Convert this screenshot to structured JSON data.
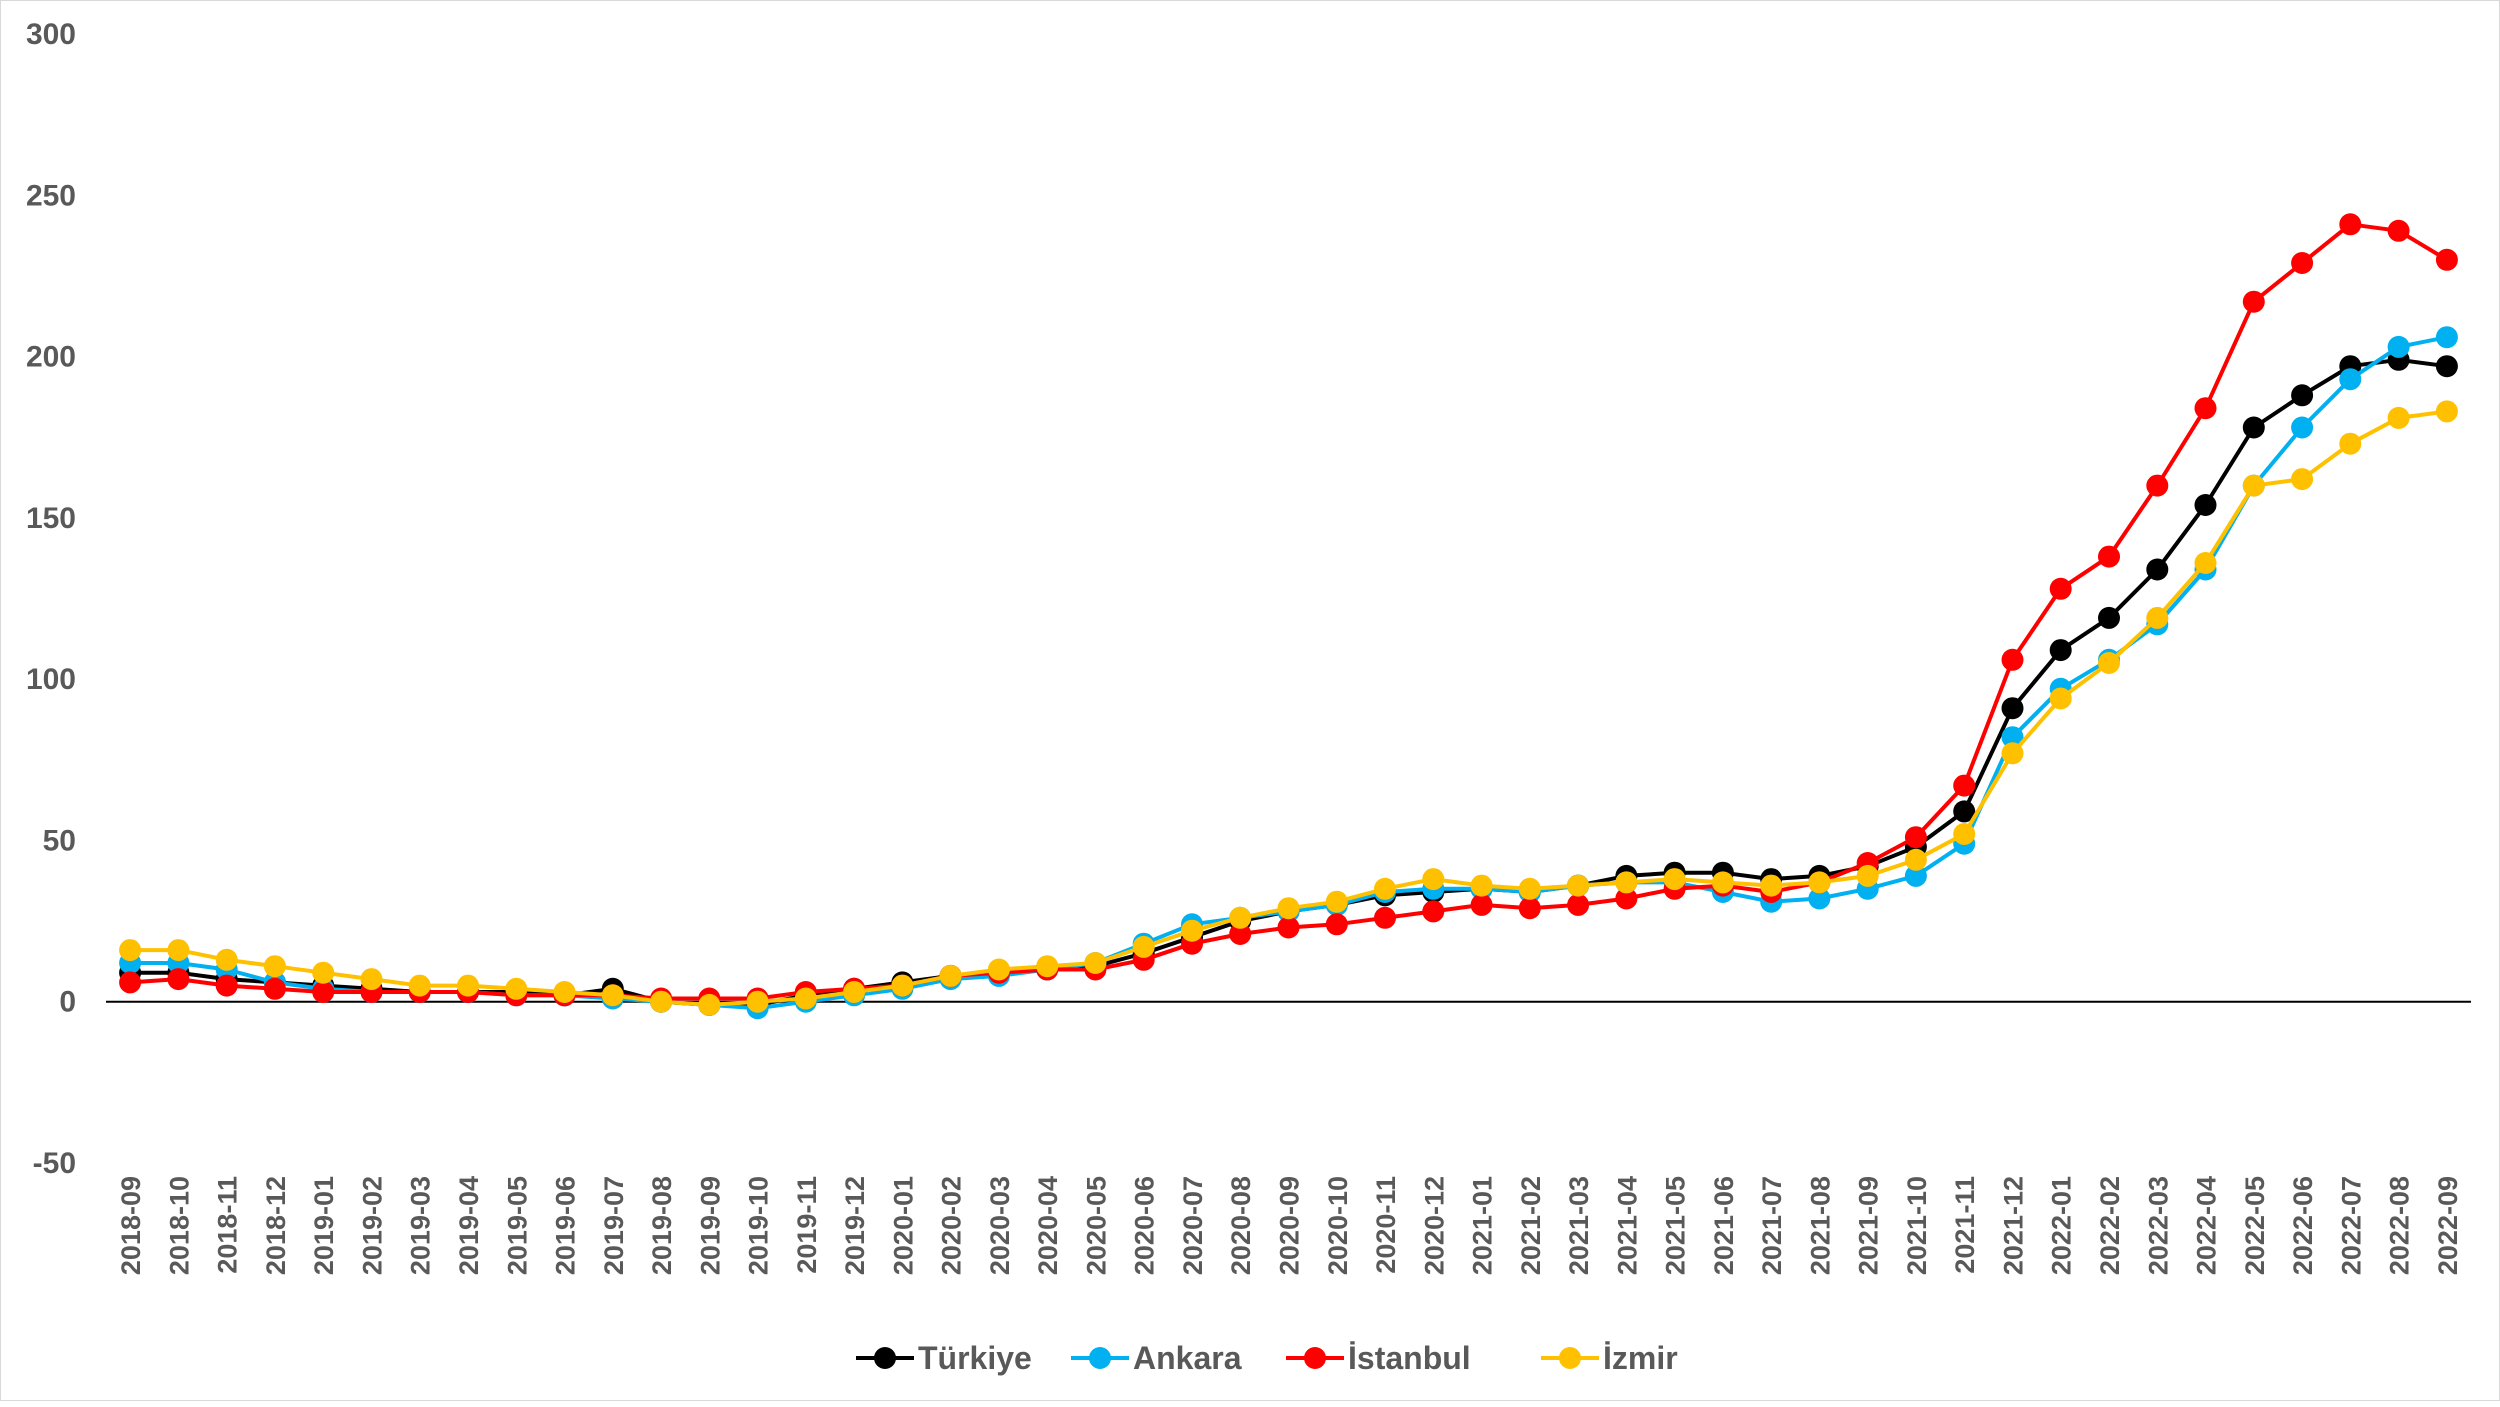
{
  "chart_data": {
    "type": "line",
    "title": "",
    "xlabel": "",
    "ylabel": "",
    "ylim": [
      -50,
      300
    ],
    "yticks": [
      -50,
      0,
      50,
      100,
      150,
      200,
      250,
      300
    ],
    "grid": false,
    "legend_position": "bottom",
    "categories": [
      "2018-09",
      "2018-10",
      "2018-11",
      "2018-12",
      "2019-01",
      "2019-02",
      "2019-03",
      "2019-04",
      "2019-05",
      "2019-06",
      "2019-07",
      "2019-08",
      "2019-09",
      "2019-10",
      "2019-11",
      "2019-12",
      "2020-01",
      "2020-02",
      "2020-03",
      "2020-04",
      "2020-05",
      "2020-06",
      "2020-07",
      "2020-08",
      "2020-09",
      "2020-10",
      "2020-11",
      "2020-12",
      "2021-01",
      "2021-02",
      "2021-03",
      "2021-04",
      "2021-05",
      "2021-06",
      "2021-07",
      "2021-08",
      "2021-09",
      "2021-10",
      "2021-11",
      "2021-12",
      "2022-01",
      "2022-02",
      "2022-03",
      "2022-04",
      "2022-05",
      "2022-06",
      "2022-07",
      "2022-08",
      "2022-09"
    ],
    "series": [
      {
        "name": "Türkiye",
        "color": "#000000",
        "values": [
          9,
          9,
          7,
          6,
          5,
          4,
          3,
          3,
          3,
          2,
          4,
          0,
          -1,
          -1,
          2,
          4,
          6,
          8,
          9,
          10,
          11,
          15,
          20,
          25,
          28,
          30,
          33,
          34,
          35,
          34,
          36,
          39,
          40,
          40,
          38,
          39,
          42,
          48,
          59,
          91,
          109,
          119,
          134,
          154,
          178,
          188,
          197,
          199,
          197
        ]
      },
      {
        "name": "Ankara",
        "color": "#00B0F0",
        "values": [
          12,
          12,
          10,
          6,
          4,
          3,
          3,
          3,
          2,
          2,
          1,
          0,
          -1,
          -2,
          0,
          2,
          4,
          7,
          8,
          10,
          12,
          18,
          24,
          26,
          28,
          30,
          34,
          35,
          35,
          34,
          36,
          37,
          37,
          34,
          31,
          32,
          35,
          39,
          49,
          82,
          97,
          106,
          117,
          134,
          160,
          178,
          193,
          203,
          206
        ]
      },
      {
        "name": "İstanbul",
        "color": "#FF0000",
        "values": [
          6,
          7,
          5,
          4,
          3,
          3,
          3,
          3,
          2,
          2,
          2,
          1,
          1,
          1,
          3,
          4,
          5,
          8,
          9,
          10,
          10,
          13,
          18,
          21,
          23,
          24,
          26,
          28,
          30,
          29,
          30,
          32,
          35,
          36,
          34,
          37,
          43,
          51,
          67,
          106,
          128,
          138,
          160,
          184,
          217,
          229,
          241,
          239,
          230
        ]
      },
      {
        "name": "İzmir",
        "color": "#FFC000",
        "values": [
          16,
          16,
          13,
          11,
          9,
          7,
          5,
          5,
          4,
          3,
          2,
          0,
          -1,
          0,
          1,
          3,
          5,
          8,
          10,
          11,
          12,
          17,
          22,
          26,
          29,
          31,
          35,
          38,
          36,
          35,
          36,
          37,
          38,
          37,
          36,
          37,
          39,
          44,
          52,
          77,
          94,
          105,
          119,
          136,
          160,
          162,
          173,
          181,
          183
        ]
      }
    ]
  }
}
